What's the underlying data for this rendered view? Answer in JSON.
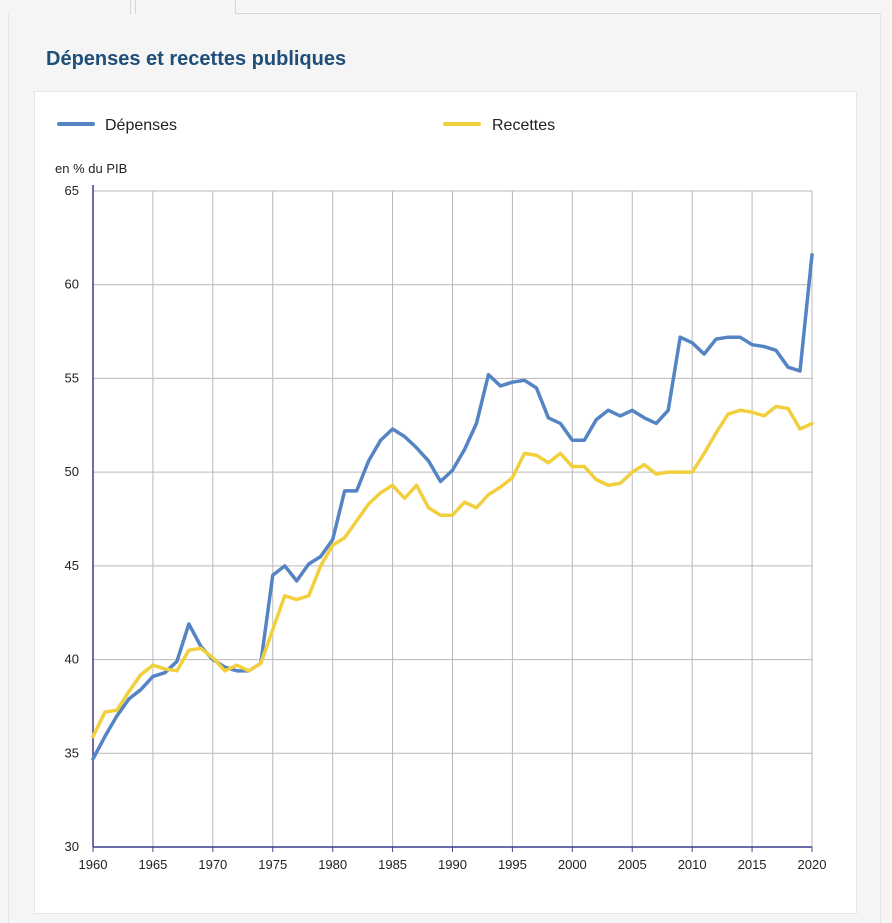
{
  "header": {
    "title": "Dépenses et recettes publiques"
  },
  "chart_data": {
    "type": "line",
    "ylabel": "en % du PIB",
    "ylim": [
      30,
      65
    ],
    "xlim": [
      1960,
      2020
    ],
    "yticks": [
      "30",
      "35",
      "40",
      "45",
      "50",
      "55",
      "60",
      "65"
    ],
    "xticks": [
      "1960",
      "1965",
      "1970",
      "1975",
      "1980",
      "1985",
      "1990",
      "1995",
      "2000",
      "2005",
      "2010",
      "2015",
      "2020"
    ],
    "grid": true,
    "legend_position": "top",
    "x": [
      1960,
      1961,
      1962,
      1963,
      1964,
      1965,
      1966,
      1967,
      1968,
      1969,
      1970,
      1971,
      1972,
      1973,
      1974,
      1975,
      1976,
      1977,
      1978,
      1979,
      1980,
      1981,
      1982,
      1983,
      1984,
      1985,
      1986,
      1987,
      1988,
      1989,
      1990,
      1991,
      1992,
      1993,
      1994,
      1995,
      1996,
      1997,
      1998,
      1999,
      2000,
      2001,
      2002,
      2003,
      2004,
      2005,
      2006,
      2007,
      2008,
      2009,
      2010,
      2011,
      2012,
      2013,
      2014,
      2015,
      2016,
      2017,
      2018,
      2019,
      2020
    ],
    "series": [
      {
        "name": "Dépenses",
        "color": "#5584c4",
        "values": [
          34.7,
          35.9,
          37.0,
          37.9,
          38.4,
          39.1,
          39.3,
          39.9,
          41.9,
          40.7,
          40.0,
          39.6,
          39.4,
          39.4,
          39.8,
          44.5,
          45.0,
          44.2,
          45.1,
          45.5,
          46.4,
          49.0,
          49.0,
          50.6,
          51.7,
          52.3,
          51.9,
          51.3,
          50.6,
          49.5,
          50.1,
          51.2,
          52.6,
          55.2,
          54.6,
          54.8,
          54.9,
          54.5,
          52.9,
          52.6,
          51.7,
          51.7,
          52.8,
          53.3,
          53.0,
          53.3,
          52.9,
          52.6,
          53.3,
          57.2,
          56.9,
          56.3,
          57.1,
          57.2,
          57.2,
          56.8,
          56.7,
          56.5,
          55.6,
          55.4,
          61.6
        ]
      },
      {
        "name": "Recettes",
        "color": "#f2cf3c",
        "values": [
          35.9,
          37.2,
          37.3,
          38.3,
          39.2,
          39.7,
          39.5,
          39.4,
          40.5,
          40.6,
          40.1,
          39.4,
          39.7,
          39.4,
          39.8,
          41.6,
          43.4,
          43.2,
          43.4,
          45.0,
          46.1,
          46.5,
          47.4,
          48.3,
          48.9,
          49.3,
          48.6,
          49.3,
          48.1,
          47.7,
          47.7,
          48.4,
          48.1,
          48.8,
          49.2,
          49.7,
          51.0,
          50.9,
          50.5,
          51.0,
          50.3,
          50.3,
          49.6,
          49.3,
          49.4,
          50.0,
          50.4,
          49.9,
          50.0,
          50.0,
          50.0,
          51.0,
          52.1,
          53.1,
          53.3,
          53.2,
          53.0,
          53.5,
          53.4,
          52.3,
          52.6
        ]
      }
    ]
  }
}
